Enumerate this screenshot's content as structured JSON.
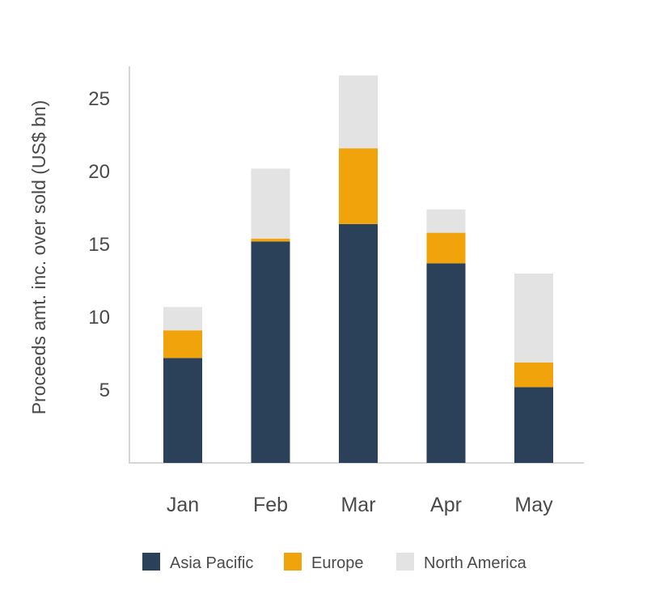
{
  "chart_data": {
    "type": "bar",
    "stacked": true,
    "title": "",
    "xlabel": "",
    "ylabel": "Proceeds amt. inc. over sold (US$ bn)",
    "categories": [
      "Jan",
      "Feb",
      "Mar",
      "Apr",
      "May"
    ],
    "series": [
      {
        "name": "Asia Pacific",
        "color": "#2b4059",
        "values": [
          7.2,
          15.2,
          16.4,
          13.7,
          5.2
        ]
      },
      {
        "name": "Europe",
        "color": "#f0a30a",
        "values": [
          1.9,
          0.2,
          5.2,
          2.1,
          1.7
        ]
      },
      {
        "name": "North America",
        "color": "#e3e3e3",
        "values": [
          1.6,
          4.8,
          5.0,
          1.6,
          6.1
        ]
      }
    ],
    "yticks": [
      5,
      10,
      15,
      20,
      25
    ],
    "ylim": [
      0,
      26.7
    ],
    "grid": false,
    "legend": "bottom"
  }
}
